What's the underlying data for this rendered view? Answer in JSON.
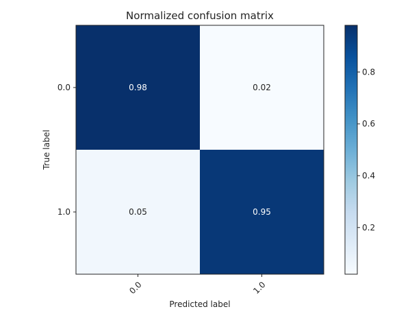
{
  "chart_data": {
    "type": "heatmap",
    "title": "Normalized confusion matrix",
    "xlabel": "Predicted label",
    "ylabel": "True label",
    "x_categories": [
      "0.0",
      "1.0"
    ],
    "y_categories": [
      "0.0",
      "1.0"
    ],
    "values": [
      [
        0.98,
        0.02
      ],
      [
        0.05,
        0.95
      ]
    ],
    "cell_labels": [
      [
        "0.98",
        "0.02"
      ],
      [
        "0.05",
        "0.95"
      ]
    ],
    "colormap": "Blues",
    "colorbar": {
      "min": 0.02,
      "max": 0.98,
      "ticks": [
        0.2,
        0.4,
        0.6,
        0.8
      ],
      "tick_labels": [
        "0.2",
        "0.4",
        "0.6",
        "0.8"
      ]
    },
    "grid": false,
    "colors": {
      "low": "#f7fbff",
      "high": "#08306b"
    }
  }
}
